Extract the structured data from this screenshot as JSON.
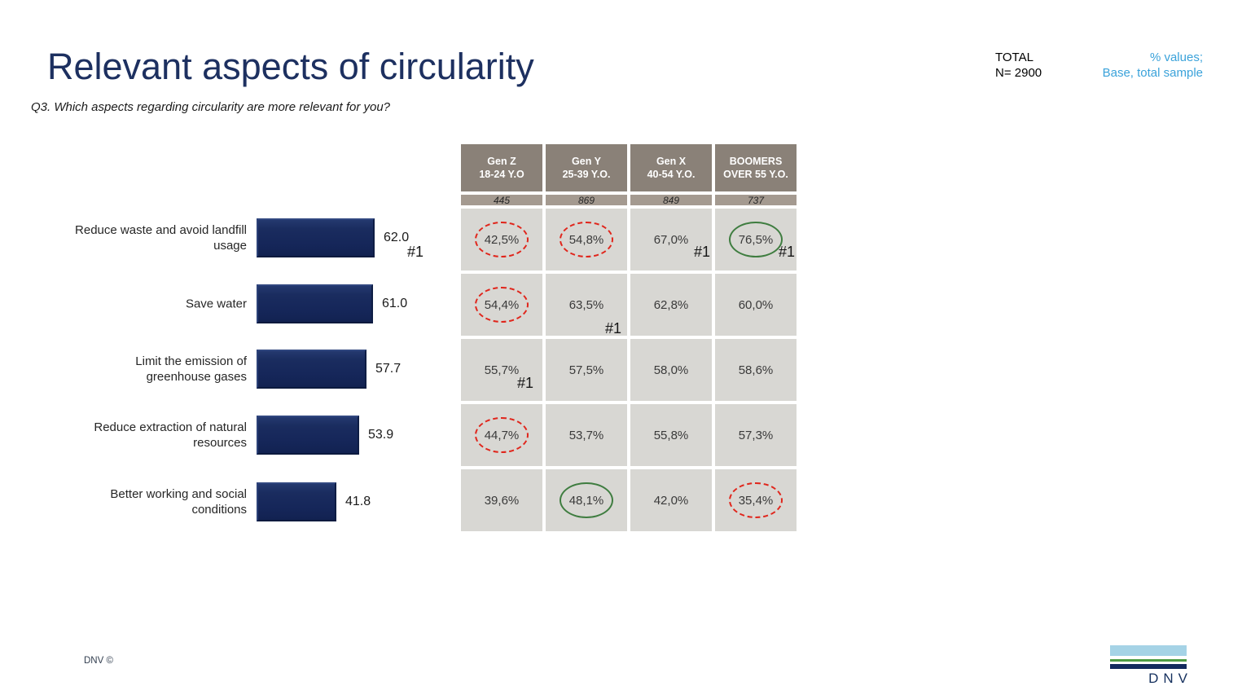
{
  "slide": {
    "title": "Relevant aspects of circularity",
    "question": "Q3. Which aspects regarding circularity are more relevant for you?",
    "total_block": "TOTAL\nN= 2900",
    "note_block": "% values;\nBase, total sample",
    "footer": "DNV ©",
    "logo_text": "DNV"
  },
  "colors": {
    "title_navy": "#1d3060",
    "bar_navy": "#182a5c",
    "note_blue": "#3aa2da",
    "red_mark": "#e0261c",
    "green_mark": "#3f7d40",
    "header_bg": "#8a8178",
    "base_bg": "#a49a90",
    "cell_bg": "#d8d7d3",
    "logo_lightblue": "#a5d3e6",
    "logo_green": "#4f9d45",
    "logo_navy": "#132a5e"
  },
  "chart_data": [
    {
      "type": "bar",
      "orientation": "horizontal",
      "title": "",
      "categories": [
        "Reduce waste and avoid landfill usage",
        "Save water",
        "Limit the emission of greenhouse gases",
        "Reduce extraction of natural resources",
        "Better working and social conditions"
      ],
      "category_display": [
        "Reduce waste and avoid landfill\nusage",
        "Save water",
        "Limit the emission of\ngreenhouse gases",
        "Reduce extraction of natural\nresources",
        "Better working and social\nconditions"
      ],
      "values": [
        62.0,
        61.0,
        57.7,
        53.9,
        41.8
      ],
      "value_labels": [
        "62.0",
        "61.0",
        "57.7",
        "53.9",
        "41.8"
      ],
      "annotations": [
        {
          "category_index": 0,
          "text": "#1"
        }
      ],
      "xlim": [
        0,
        100
      ],
      "grid": false,
      "legend": false,
      "bar_color": "#182a5c"
    },
    {
      "type": "table",
      "columns": [
        {
          "gen": "Gen Z",
          "age": "18-24 Y.O",
          "base": "445"
        },
        {
          "gen": "Gen Y",
          "age": "25-39 Y.O.",
          "base": "869"
        },
        {
          "gen": "Gen X",
          "age": "40-54 Y.O.",
          "base": "849"
        },
        {
          "gen": "BOOMERS",
          "age": "OVER 55 Y.O.",
          "base": "737"
        }
      ],
      "rows": [
        [
          {
            "v": "42,5%",
            "mark": "red"
          },
          {
            "v": "54,8%",
            "mark": "red"
          },
          {
            "v": "67,0%",
            "rank": "#1",
            "rank_pos": "corner"
          },
          {
            "v": "76,5%",
            "mark": "green",
            "rank": "#1",
            "rank_pos": "corner"
          }
        ],
        [
          {
            "v": "54,4%",
            "mark": "red"
          },
          {
            "v": "63,5%",
            "rank": "#1",
            "rank_pos": "bottom"
          },
          {
            "v": "62,8%"
          },
          {
            "v": "60,0%"
          }
        ],
        [
          {
            "v": "55,7%",
            "rank": "#1",
            "rank_pos": "inside"
          },
          {
            "v": "57,5%"
          },
          {
            "v": "58,0%"
          },
          {
            "v": "58,6%"
          }
        ],
        [
          {
            "v": "44,7%",
            "mark": "red"
          },
          {
            "v": "53,7%"
          },
          {
            "v": "55,8%"
          },
          {
            "v": "57,3%"
          }
        ],
        [
          {
            "v": "39,6%"
          },
          {
            "v": "48,1%",
            "mark": "green"
          },
          {
            "v": "42,0%"
          },
          {
            "v": "35,4%",
            "mark": "red"
          }
        ]
      ],
      "mark_legend": {
        "red": "red-dashed-ellipse",
        "green": "green-solid-ellipse"
      }
    }
  ]
}
